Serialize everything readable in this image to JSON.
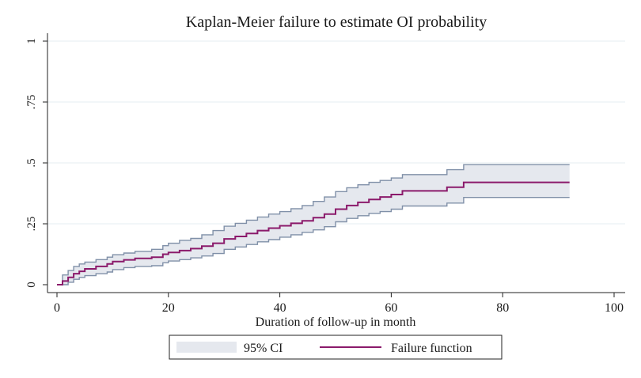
{
  "chart_data": {
    "type": "line",
    "title": "Kaplan-Meier failure to estimate OI probability",
    "xlabel": "Duration of follow-up in month",
    "ylabel": "",
    "xlim": [
      0,
      100
    ],
    "ylim": [
      0,
      1
    ],
    "xticks": [
      0,
      20,
      40,
      60,
      80,
      100
    ],
    "xtick_labels": [
      "0",
      "20",
      "40",
      "60",
      "80",
      "100"
    ],
    "yticks": [
      0,
      0.25,
      0.5,
      0.75,
      1
    ],
    "ytick_labels": [
      "0",
      ".25",
      ".5",
      ".75",
      "1"
    ],
    "grid": true,
    "legend_position": "bottom",
    "legend": [
      "95% CI",
      "Failure function"
    ],
    "series": [
      {
        "name": "Failure function",
        "color": "#8b1a6b",
        "x": [
          0,
          1,
          2,
          3,
          4,
          5,
          7,
          9,
          10,
          12,
          14,
          17,
          19,
          20,
          22,
          24,
          26,
          28,
          30,
          32,
          34,
          36,
          38,
          40,
          42,
          44,
          46,
          48,
          50,
          52,
          54,
          56,
          58,
          60,
          62,
          70,
          73,
          92
        ],
        "y": [
          0.0,
          0.015,
          0.03,
          0.045,
          0.055,
          0.065,
          0.075,
          0.085,
          0.095,
          0.102,
          0.108,
          0.113,
          0.125,
          0.132,
          0.14,
          0.148,
          0.158,
          0.17,
          0.188,
          0.198,
          0.21,
          0.222,
          0.232,
          0.242,
          0.252,
          0.262,
          0.275,
          0.29,
          0.31,
          0.325,
          0.338,
          0.35,
          0.36,
          0.37,
          0.385,
          0.4,
          0.42,
          0.42
        ]
      },
      {
        "name": "95% CI upper",
        "color": "#8090a8",
        "x": [
          0,
          1,
          2,
          3,
          4,
          5,
          7,
          9,
          10,
          12,
          14,
          17,
          19,
          20,
          22,
          24,
          26,
          28,
          30,
          32,
          34,
          36,
          38,
          40,
          42,
          44,
          46,
          48,
          50,
          52,
          54,
          56,
          58,
          60,
          62,
          70,
          73,
          92
        ],
        "y": [
          0.0,
          0.04,
          0.058,
          0.075,
          0.085,
          0.093,
          0.103,
          0.113,
          0.123,
          0.13,
          0.137,
          0.145,
          0.16,
          0.17,
          0.182,
          0.19,
          0.205,
          0.222,
          0.24,
          0.252,
          0.265,
          0.278,
          0.29,
          0.3,
          0.312,
          0.325,
          0.342,
          0.36,
          0.382,
          0.398,
          0.41,
          0.42,
          0.428,
          0.438,
          0.452,
          0.472,
          0.493,
          0.493
        ]
      },
      {
        "name": "95% CI lower",
        "color": "#8090a8",
        "x": [
          0,
          1,
          2,
          3,
          4,
          5,
          7,
          9,
          10,
          12,
          14,
          17,
          19,
          20,
          22,
          24,
          26,
          28,
          30,
          32,
          34,
          36,
          38,
          40,
          42,
          44,
          46,
          48,
          50,
          52,
          54,
          56,
          58,
          60,
          62,
          70,
          73,
          92
        ],
        "y": [
          0.0,
          0.0,
          0.01,
          0.022,
          0.03,
          0.037,
          0.045,
          0.052,
          0.062,
          0.07,
          0.075,
          0.078,
          0.09,
          0.097,
          0.103,
          0.11,
          0.118,
          0.128,
          0.145,
          0.155,
          0.165,
          0.176,
          0.185,
          0.195,
          0.205,
          0.215,
          0.225,
          0.238,
          0.258,
          0.272,
          0.283,
          0.293,
          0.3,
          0.31,
          0.323,
          0.335,
          0.358,
          0.358
        ]
      }
    ]
  }
}
